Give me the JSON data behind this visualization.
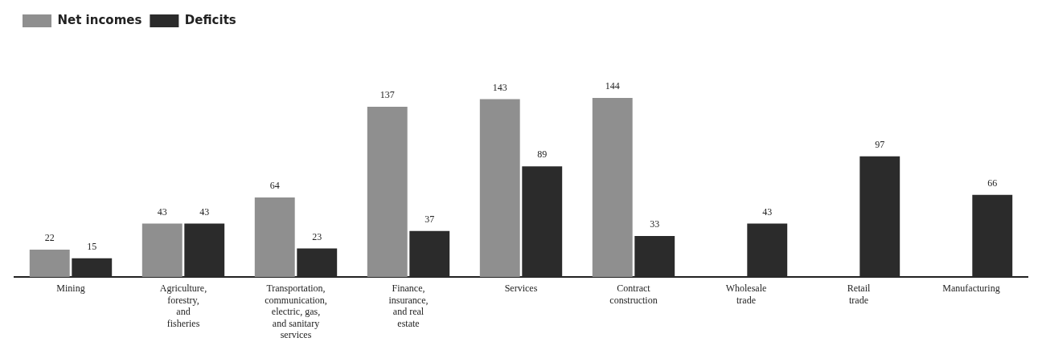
{
  "chart_data": {
    "type": "bar",
    "categories": [
      "Mining",
      "Agriculture,\nforestry,\nand\nfisheries",
      "Transportation,\ncommunication,\nelectric, gas,\nand sanitary\nservices",
      "Finance,\ninsurance,\nand real\nestate",
      "Services",
      "Contract\nconstruction",
      "Wholesale\ntrade",
      "Retail\ntrade",
      "Manufacturing"
    ],
    "series": [
      {
        "name": "Net incomes",
        "color": "#8f8f8f",
        "values": [
          22,
          43,
          64,
          137,
          143,
          144,
          null,
          null,
          null
        ]
      },
      {
        "name": "Deficits",
        "color": "#2b2b2b",
        "values": [
          15,
          43,
          23,
          37,
          89,
          33,
          43,
          97,
          66
        ]
      }
    ],
    "data_labels": true,
    "legend": "top left",
    "grid": false
  }
}
